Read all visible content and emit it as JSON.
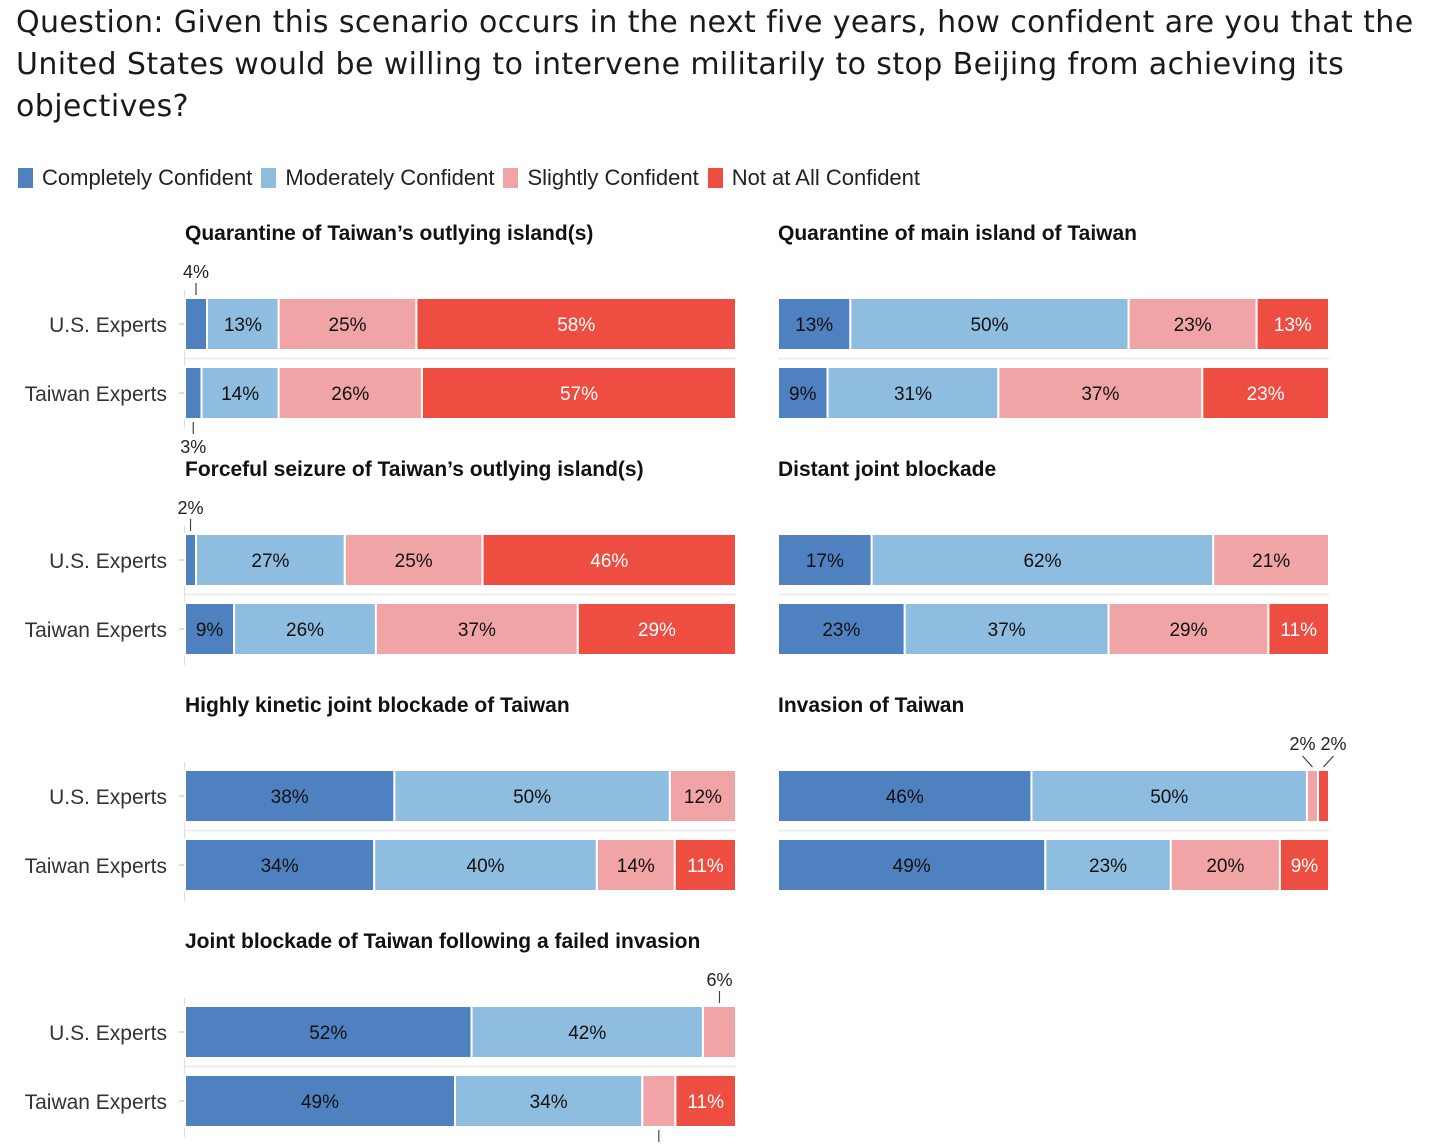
{
  "question": "Question: Given this scenario occurs in the next five years, how confident are you that the United States would be willing to intervene militarily to stop Beijing from achieving its objectives?",
  "colors": {
    "completely": "#4f81c1",
    "moderately": "#8fbde0",
    "slightly": "#f0a4a5",
    "not_at_all": "#ee4d42"
  },
  "chart_data": {
    "type": "bar",
    "orientation": "horizontal-stacked-100",
    "categories": [
      "U.S. Experts",
      "Taiwan Experts"
    ],
    "legend": [
      {
        "key": "completely",
        "label": "Completely Confident"
      },
      {
        "key": "moderately",
        "label": "Moderately Confident"
      },
      {
        "key": "slightly",
        "label": "Slightly Confident"
      },
      {
        "key": "not_at_all",
        "label": "Not at All Confident"
      }
    ],
    "legend_position": "top-left",
    "panels": [
      {
        "title": "Quarantine of Taiwan’s outlying island(s)",
        "rows": [
          [
            4,
            13,
            25,
            58
          ],
          [
            3,
            14,
            26,
            57
          ]
        ]
      },
      {
        "title": "Quarantine of main island of Taiwan",
        "rows": [
          [
            13,
            50,
            23,
            13
          ],
          [
            9,
            31,
            37,
            23
          ]
        ]
      },
      {
        "title": "Forceful seizure of Taiwan’s outlying island(s)",
        "rows": [
          [
            2,
            27,
            25,
            46
          ],
          [
            9,
            26,
            37,
            29
          ]
        ]
      },
      {
        "title": "Distant joint blockade",
        "rows": [
          [
            17,
            62,
            21,
            0
          ],
          [
            23,
            37,
            29,
            11
          ]
        ]
      },
      {
        "title": "Highly kinetic joint blockade of Taiwan",
        "rows": [
          [
            38,
            50,
            12,
            0
          ],
          [
            34,
            40,
            14,
            11
          ]
        ]
      },
      {
        "title": "Invasion of Taiwan",
        "rows": [
          [
            46,
            50,
            2,
            2
          ],
          [
            49,
            23,
            20,
            9
          ]
        ]
      },
      {
        "title": "Joint blockade of Taiwan following a failed invasion",
        "rows": [
          [
            52,
            42,
            6,
            0
          ],
          [
            49,
            34,
            6,
            11
          ]
        ]
      }
    ]
  }
}
